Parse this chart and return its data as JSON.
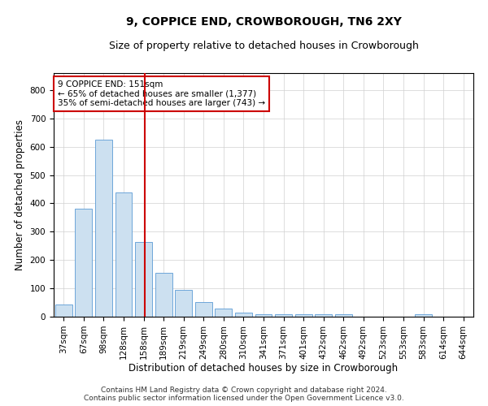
{
  "title": "9, COPPICE END, CROWBOROUGH, TN6 2XY",
  "subtitle": "Size of property relative to detached houses in Crowborough",
  "xlabel": "Distribution of detached houses by size in Crowborough",
  "ylabel": "Number of detached properties",
  "categories": [
    "37sqm",
    "67sqm",
    "98sqm",
    "128sqm",
    "158sqm",
    "189sqm",
    "219sqm",
    "249sqm",
    "280sqm",
    "310sqm",
    "341sqm",
    "371sqm",
    "401sqm",
    "432sqm",
    "462sqm",
    "492sqm",
    "523sqm",
    "553sqm",
    "583sqm",
    "614sqm",
    "644sqm"
  ],
  "values": [
    42,
    380,
    625,
    438,
    265,
    155,
    95,
    52,
    28,
    15,
    10,
    10,
    10,
    10,
    10,
    0,
    0,
    0,
    8,
    0,
    0
  ],
  "bar_color": "#cce0f0",
  "bar_edge_color": "#5b9bd5",
  "vline_index": 4,
  "vline_color": "#cc0000",
  "annotation_line1": "9 COPPICE END: 151sqm",
  "annotation_line2": "← 65% of detached houses are smaller (1,377)",
  "annotation_line3": "35% of semi-detached houses are larger (743) →",
  "annotation_box_color": "#ffffff",
  "annotation_box_edge_color": "#cc0000",
  "ylim": [
    0,
    860
  ],
  "yticks": [
    0,
    100,
    200,
    300,
    400,
    500,
    600,
    700,
    800
  ],
  "footer_line1": "Contains HM Land Registry data © Crown copyright and database right 2024.",
  "footer_line2": "Contains public sector information licensed under the Open Government Licence v3.0.",
  "bg_color": "#ffffff",
  "grid_color": "#d0d0d0",
  "title_fontsize": 10,
  "subtitle_fontsize": 9,
  "axis_label_fontsize": 8.5,
  "tick_fontsize": 7.5,
  "annotation_fontsize": 7.5,
  "footer_fontsize": 6.5
}
